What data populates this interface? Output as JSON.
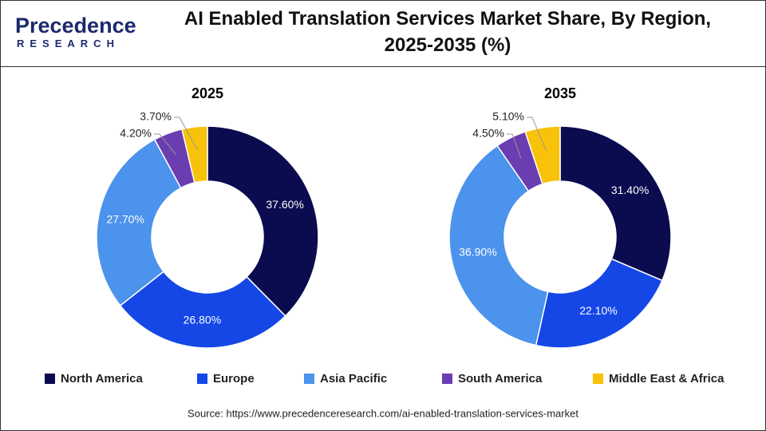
{
  "header": {
    "logo_top": "Precedence",
    "logo_bottom": "RESEARCH",
    "title": "AI Enabled Translation Services Market Share, By Region, 2025-2035 (%)"
  },
  "chart_data": [
    {
      "type": "pie",
      "title": "2025",
      "donut": true,
      "categories": [
        "North America",
        "Europe",
        "Asia Pacific",
        "South America",
        "Middle East & Africa"
      ],
      "colors": [
        "#0b0b4f",
        "#1447e6",
        "#4b93ec",
        "#6a3db0",
        "#f8c20a"
      ],
      "values": [
        37.6,
        26.8,
        27.7,
        4.2,
        3.7
      ],
      "value_labels": [
        "37.60%",
        "26.80%",
        "27.70%",
        "4.20%",
        "3.70%"
      ]
    },
    {
      "type": "pie",
      "title": "2035",
      "donut": true,
      "categories": [
        "North America",
        "Europe",
        "Asia Pacific",
        "South America",
        "Middle East & Africa"
      ],
      "colors": [
        "#0b0b4f",
        "#1447e6",
        "#4b93ec",
        "#6a3db0",
        "#f8c20a"
      ],
      "values": [
        31.4,
        22.1,
        36.9,
        4.5,
        5.1
      ],
      "value_labels": [
        "31.40%",
        "22.10%",
        "36.90%",
        "4.50%",
        "5.10%"
      ]
    }
  ],
  "source": "Source: https://www.precedenceresearch.com/ai-enabled-translation-services-market"
}
